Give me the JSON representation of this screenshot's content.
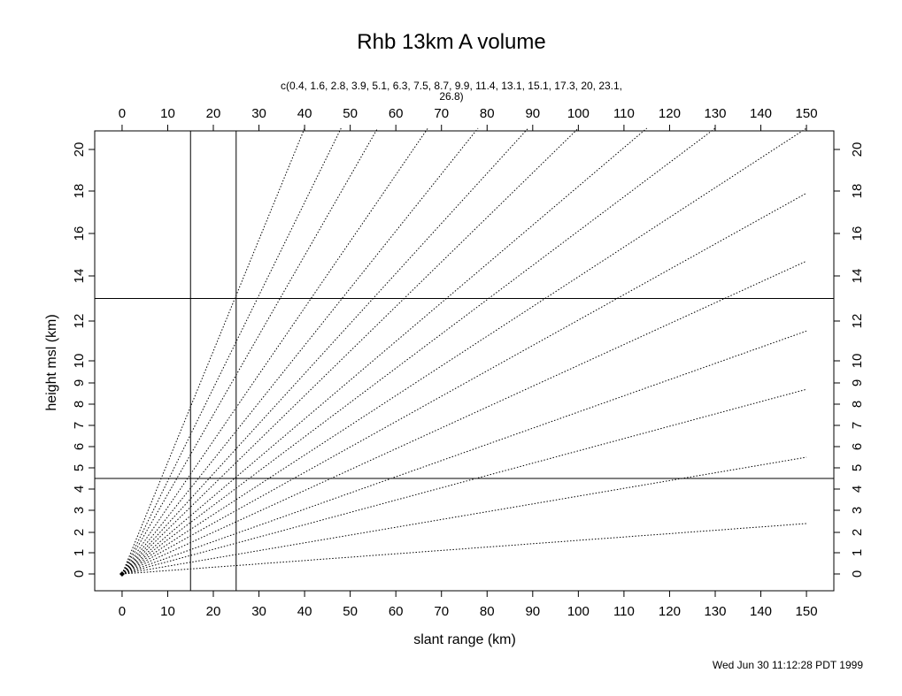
{
  "chart_data": {
    "type": "line",
    "title": "Rhb 13km A volume",
    "xlabel": "slant range (km)",
    "ylabel": "height msl (km)",
    "top_label_line1": "c(0.4, 1.6, 2.8, 3.9, 5.1, 6.3, 7.5, 8.7, 9.9, 11.4, 13.1, 15.1, 17.3, 20, 23.1,",
    "top_label_line2": "26.8)",
    "footer": "Wed Jun 30 11:12:28 PDT 1999",
    "xlim": [
      -6,
      156
    ],
    "x_ticks": [
      0,
      10,
      20,
      30,
      40,
      50,
      60,
      70,
      80,
      90,
      100,
      110,
      120,
      130,
      140,
      150
    ],
    "y_ticks": [
      0,
      1,
      2,
      3,
      4,
      5,
      6,
      7,
      8,
      9,
      10,
      12,
      14,
      16,
      18,
      20
    ],
    "y_scale": "nonlinear (compressed above 4 km)",
    "elevation_angles_deg": [
      0.4,
      1.6,
      2.8,
      3.9,
      5.1,
      6.3,
      7.5,
      8.7,
      9.9,
      11.4,
      13.1,
      15.1,
      17.3,
      20,
      23.1,
      26.8
    ],
    "series": [
      {
        "values": [
          [
            0,
            0
          ],
          [
            150,
            2.4
          ]
        ]
      },
      {
        "values": [
          [
            0,
            0
          ],
          [
            150,
            5.5
          ]
        ]
      },
      {
        "values": [
          [
            0,
            0
          ],
          [
            150,
            8.7
          ]
        ]
      },
      {
        "values": [
          [
            0,
            0
          ],
          [
            150,
            11.5
          ]
        ]
      },
      {
        "values": [
          [
            0,
            0
          ],
          [
            150,
            14.7
          ]
        ]
      },
      {
        "values": [
          [
            0,
            0
          ],
          [
            150,
            17.9
          ]
        ]
      },
      {
        "values": [
          [
            0,
            0
          ],
          [
            150,
            21.0
          ]
        ]
      },
      {
        "values": [
          [
            0,
            0
          ],
          [
            130,
            21.0
          ]
        ]
      },
      {
        "values": [
          [
            0,
            0
          ],
          [
            115,
            21.0
          ]
        ]
      },
      {
        "values": [
          [
            0,
            0
          ],
          [
            100,
            21.0
          ]
        ]
      },
      {
        "values": [
          [
            0,
            0
          ],
          [
            89,
            21.0
          ]
        ]
      },
      {
        "values": [
          [
            0,
            0
          ],
          [
            78,
            21.0
          ]
        ]
      },
      {
        "values": [
          [
            0,
            0
          ],
          [
            67,
            21.0
          ]
        ]
      },
      {
        "values": [
          [
            0,
            0
          ],
          [
            56,
            21.0
          ]
        ]
      },
      {
        "values": [
          [
            0,
            0
          ],
          [
            48,
            21.0
          ]
        ]
      },
      {
        "values": [
          [
            0,
            0
          ],
          [
            40,
            21.0
          ]
        ]
      }
    ],
    "reference_lines": {
      "vertical_x": [
        15,
        25
      ],
      "horizontal_y": [
        4.5,
        13
      ]
    },
    "origin_marker": {
      "x": 0,
      "y": 0
    },
    "grid": false,
    "legend": "none"
  }
}
